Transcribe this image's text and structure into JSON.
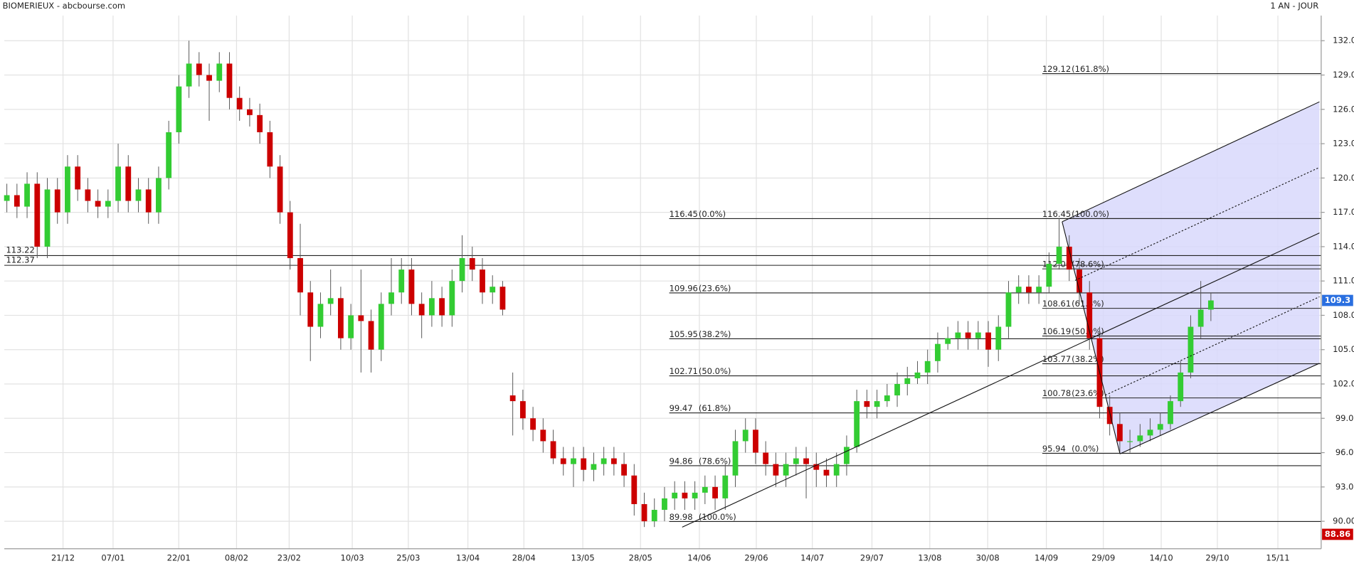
{
  "header": {
    "title": "BIOMERIEUX - abcbourse.com",
    "period": "1 AN - JOUR"
  },
  "chart_data": {
    "type": "candlestick",
    "up_color": "#33cc33",
    "down_color": "#cc0000",
    "grid": true,
    "xlim": [
      -0.25,
      129.9
    ],
    "ylim": [
      87.6,
      134.2
    ],
    "xticks": [
      {
        "value": 5.55,
        "label": "21/12"
      },
      {
        "value": 10.5,
        "label": "07/01"
      },
      {
        "value": 16.99,
        "label": "22/01"
      },
      {
        "value": 22.7,
        "label": "08/02"
      },
      {
        "value": 27.9,
        "label": "23/02"
      },
      {
        "value": 34.14,
        "label": "10/03"
      },
      {
        "value": 39.68,
        "label": "25/03"
      },
      {
        "value": 45.57,
        "label": "13/04"
      },
      {
        "value": 51.1,
        "label": "28/04"
      },
      {
        "value": 56.92,
        "label": "13/05"
      },
      {
        "value": 62.63,
        "label": "28/05"
      },
      {
        "value": 68.44,
        "label": "14/06"
      },
      {
        "value": 74.07,
        "label": "29/06"
      },
      {
        "value": 79.61,
        "label": "14/07"
      },
      {
        "value": 85.5,
        "label": "29/07"
      },
      {
        "value": 91.22,
        "label": "13/08"
      },
      {
        "value": 96.94,
        "label": "30/08"
      },
      {
        "value": 102.74,
        "label": "14/09"
      },
      {
        "value": 108.37,
        "label": "29/09"
      },
      {
        "value": 114.09,
        "label": "14/10"
      },
      {
        "value": 119.64,
        "label": "29/10"
      },
      {
        "value": 125.62,
        "label": "15/11"
      }
    ],
    "yticks": [
      {
        "value": 90,
        "label": "90.00"
      },
      {
        "value": 93,
        "label": "93.0"
      },
      {
        "value": 96,
        "label": "96.0"
      },
      {
        "value": 99,
        "label": "99.0"
      },
      {
        "value": 102,
        "label": "102.0"
      },
      {
        "value": 105,
        "label": "105.0"
      },
      {
        "value": 108,
        "label": "108.0"
      },
      {
        "value": 111,
        "label": "111.0"
      },
      {
        "value": 114,
        "label": "114.0"
      },
      {
        "value": 117,
        "label": "117.0"
      },
      {
        "value": 120,
        "label": "120.0"
      },
      {
        "value": 123,
        "label": "123.0"
      },
      {
        "value": 126,
        "label": "126.0"
      },
      {
        "value": 129,
        "label": "129.0"
      },
      {
        "value": 132,
        "label": "132.0"
      }
    ],
    "open": [
      118,
      118.5,
      117.5,
      119.5,
      114,
      119,
      117,
      121,
      119,
      118,
      117.5,
      118,
      121,
      118,
      119,
      117,
      120,
      124,
      128,
      130,
      129,
      128.5,
      130,
      127,
      126,
      125.5,
      124,
      121,
      117,
      113,
      110,
      107,
      109,
      109.5,
      106,
      108,
      107.5,
      105,
      109,
      110,
      112,
      109,
      108,
      109.5,
      108,
      111,
      113,
      112,
      110,
      110.5,
      101,
      100.5,
      99,
      98,
      97,
      95.5,
      95,
      95.5,
      94.5,
      95,
      95.5,
      95,
      94,
      91.5,
      90,
      91,
      92,
      92.5,
      92,
      92.5,
      93,
      92,
      94,
      97,
      98,
      96,
      95,
      94,
      95,
      95.5,
      95,
      94.5,
      94,
      95,
      96.5,
      100.5,
      100,
      100.5,
      101,
      102,
      102.5,
      103,
      104,
      105.5,
      106,
      106.5,
      106,
      106.5,
      105,
      107,
      110,
      110.5,
      110,
      110.5,
      112.5,
      114,
      112,
      110,
      106,
      100,
      98.5,
      97,
      97,
      97.5,
      98,
      98.5,
      100.5,
      103,
      107,
      108.5
    ],
    "high": [
      119.5,
      119.5,
      120.5,
      120.5,
      120,
      120,
      122,
      122,
      120,
      119,
      119,
      123,
      122,
      120,
      120,
      121,
      125,
      129,
      132,
      131,
      130,
      131,
      131,
      128,
      127,
      126.5,
      125,
      122,
      118,
      116,
      111,
      110,
      112,
      110.5,
      109,
      112,
      108.5,
      110,
      113,
      113,
      113,
      110,
      111,
      110.5,
      112,
      115,
      114,
      113,
      111.5,
      111,
      103,
      101.5,
      100,
      99,
      98,
      96.5,
      96.5,
      96.5,
      96,
      96.5,
      96.5,
      96,
      95,
      92.5,
      92,
      93,
      93.5,
      93.5,
      93.5,
      94,
      94,
      95,
      98,
      99,
      99,
      97,
      96,
      96,
      96.5,
      96.5,
      96,
      95.5,
      96,
      97.5,
      101.5,
      101.5,
      101.5,
      102,
      103,
      103.5,
      104,
      105,
      106.5,
      107,
      107.5,
      107.5,
      107.5,
      107.5,
      108,
      111,
      111.5,
      111.5,
      111.5,
      113.5,
      116.5,
      115,
      113,
      111,
      107,
      101,
      99.5,
      98,
      98.5,
      99,
      99.5,
      101,
      104,
      108,
      111,
      110
    ],
    "low": [
      117,
      116.5,
      116.5,
      113,
      113,
      116,
      116,
      118,
      117,
      116.5,
      116.5,
      117,
      117,
      117,
      116,
      116,
      119,
      123,
      127,
      128,
      125,
      127.5,
      126,
      125,
      124.5,
      123,
      120,
      116,
      112,
      108,
      104,
      106,
      108,
      105,
      105,
      103,
      103,
      104,
      108,
      109,
      108,
      106,
      107,
      107,
      107,
      110,
      111,
      109,
      109,
      108,
      97.5,
      98,
      97,
      96,
      95,
      94,
      93,
      93.5,
      93.5,
      94,
      94,
      93,
      90.5,
      89.5,
      89.5,
      90,
      91,
      91,
      91,
      91.5,
      91,
      91,
      93,
      96,
      95,
      94,
      93,
      93,
      94,
      92,
      93,
      93,
      93,
      94,
      96,
      99,
      99,
      100,
      100,
      101,
      102,
      102,
      103,
      105,
      105,
      105,
      105,
      103.5,
      104,
      106,
      109,
      109,
      109,
      110,
      112,
      111,
      109,
      105,
      99,
      97.5,
      95.9,
      96,
      96.5,
      97,
      97.5,
      98,
      100,
      102.5,
      106,
      107.5
    ],
    "close": [
      118.5,
      117.5,
      119.5,
      114,
      119,
      117,
      121,
      119,
      118,
      117.5,
      118,
      121,
      118,
      119,
      117,
      120,
      124,
      128,
      130,
      129,
      128.5,
      130,
      127,
      126,
      125.5,
      124,
      121,
      117,
      113,
      110,
      107,
      109,
      109.5,
      106,
      108,
      107.5,
      105,
      109,
      110,
      112,
      109,
      108,
      109.5,
      108,
      111,
      113,
      112,
      110,
      110.5,
      108.5,
      100.5,
      99,
      98,
      97,
      95.5,
      95,
      95.5,
      94.5,
      95,
      95.5,
      95,
      94,
      91.5,
      90,
      91,
      92,
      92.5,
      92,
      92.5,
      93,
      92,
      94,
      97,
      98,
      96,
      95,
      94,
      95,
      95.5,
      95,
      94.5,
      94,
      95,
      96.5,
      100.5,
      100,
      100.5,
      101,
      102,
      102.5,
      103,
      104,
      105.5,
      106,
      106.5,
      106,
      106.5,
      105,
      107,
      110,
      110.5,
      110,
      110.5,
      112.5,
      114,
      112,
      110,
      106,
      100,
      98.5,
      97,
      97,
      97.5,
      98,
      98.5,
      100.5,
      103,
      107,
      108.5,
      109.3
    ],
    "reference_lines": [
      113.22,
      112.37
    ],
    "fib_left": [
      {
        "value": 116.45,
        "pct": "(0.0%)"
      },
      {
        "value": 109.96,
        "pct": "(23.6%)"
      },
      {
        "value": 105.95,
        "pct": "(38.2%)"
      },
      {
        "value": 102.71,
        "pct": "(50.0%)"
      },
      {
        "value": 99.47,
        "pct": "(61.8%)"
      },
      {
        "value": 94.86,
        "pct": "(78.6%)"
      },
      {
        "value": 89.98,
        "pct": "(100.0%)"
      }
    ],
    "fib_right": [
      {
        "value": 129.12,
        "pct": "(161.8%)"
      },
      {
        "value": 116.45,
        "pct": "(100.0%)"
      },
      {
        "value": 112.06,
        "pct": "(78.6%)"
      },
      {
        "value": 108.61,
        "pct": "(61.8%)"
      },
      {
        "value": 106.19,
        "pct": "(50.0%)"
      },
      {
        "value": 103.77,
        "pct": "(38.2%)"
      },
      {
        "value": 100.78,
        "pct": "(23.6%)"
      },
      {
        "value": 95.94,
        "pct": "(0.0%)"
      }
    ],
    "last_price": 109.3,
    "low_marker": 88.86
  }
}
